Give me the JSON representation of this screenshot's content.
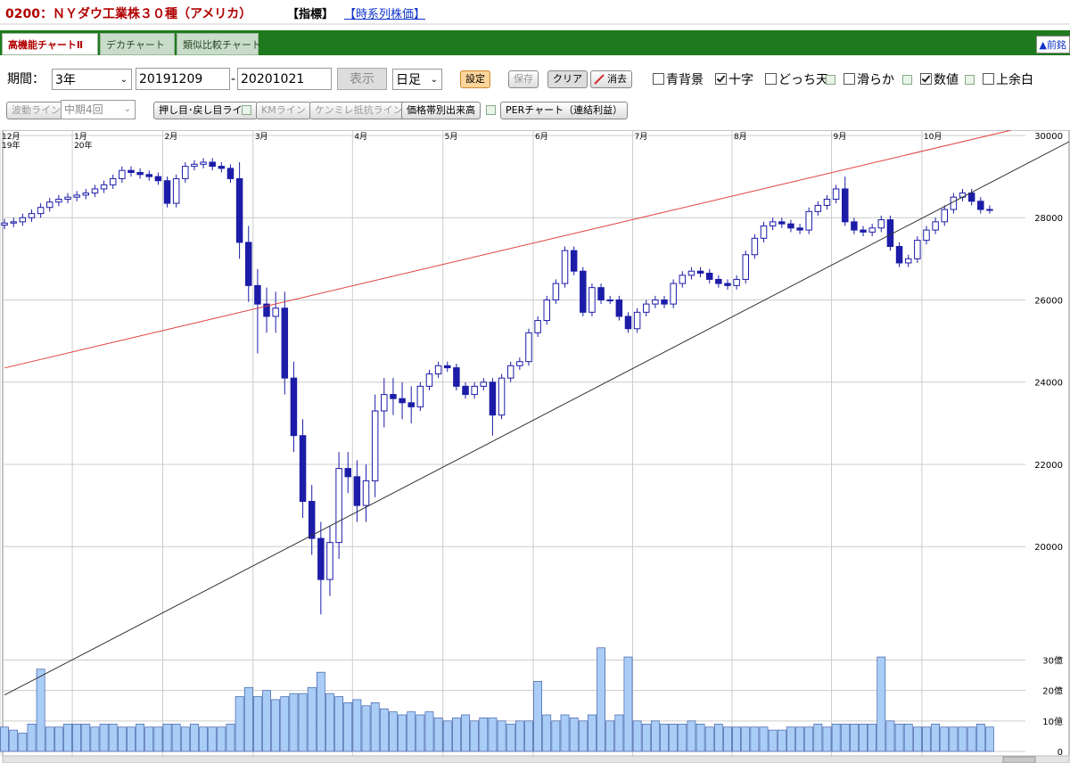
{
  "header": {
    "title": "0200：ＮＹダウ工業株３０種（アメリカ）",
    "indicator": "【指標】",
    "timeseries_link": "【時系列株価】"
  },
  "tabs": [
    "高機能チャートⅡ",
    "デカチャート",
    "類似比較チャート"
  ],
  "prev_brand": "▲前銘",
  "controls": {
    "period_label": "期間：",
    "period": "3年",
    "start": "20191209",
    "separator": "-",
    "end": "20201021",
    "show_button": "表示",
    "interval": "日足",
    "settings": "設定",
    "save": "保存",
    "clear": "クリア",
    "erase": "消去",
    "checkboxes": [
      {
        "label": "青背景",
        "checked": false
      },
      {
        "label": "十字",
        "checked": true
      },
      {
        "label": "どっち天",
        "checked": false
      },
      {
        "label": "滑らか",
        "checked": false
      },
      {
        "label": "数値",
        "checked": true
      },
      {
        "label": "上余白",
        "checked": false
      }
    ]
  },
  "tools": {
    "wave_line": "波動ライン",
    "wave_period": "中期4回",
    "buttons": [
      "押し目･戻し目ライン",
      "KMライン",
      "ケンミレ抵抗ライン",
      "価格帯別出来高",
      "PERチャート（連結利益）"
    ]
  },
  "chart_data": {
    "type": "candlestick",
    "grid": true,
    "color": "#1c1ca8",
    "up_color": "#ffffff",
    "categories": [
      "12月",
      null,
      null,
      null,
      null,
      null,
      null,
      null,
      "1月",
      null,
      null,
      null,
      null,
      null,
      null,
      null,
      null,
      null,
      "2月",
      null,
      null,
      null,
      null,
      null,
      null,
      null,
      null,
      null,
      "3月",
      null,
      null,
      null,
      null,
      null,
      null,
      null,
      null,
      null,
      null,
      "4月",
      null,
      null,
      null,
      null,
      null,
      null,
      null,
      null,
      null,
      "5月",
      null,
      null,
      null,
      null,
      null,
      null,
      null,
      null,
      null,
      "6月",
      null,
      null,
      null,
      null,
      null,
      null,
      null,
      null,
      null,
      null,
      "7月",
      null,
      null,
      null,
      null,
      null,
      null,
      null,
      null,
      null,
      null,
      "8月",
      null,
      null,
      null,
      null,
      null,
      null,
      null,
      null,
      null,
      null,
      "9月",
      null,
      null,
      null,
      null,
      null,
      null,
      null,
      null,
      null,
      "10月",
      null,
      null,
      null,
      null,
      null,
      null,
      null
    ],
    "year_labels": [
      "19年",
      null,
      null,
      null,
      null,
      null,
      null,
      null,
      "20年",
      null,
      null,
      null,
      null,
      null,
      null,
      null,
      null,
      null,
      null,
      null,
      null,
      null,
      null,
      null,
      null,
      null,
      null,
      null,
      null,
      null,
      null,
      null,
      null,
      null,
      null,
      null,
      null,
      null,
      null,
      null,
      null,
      null,
      null,
      null,
      null,
      null,
      null,
      null,
      null,
      null,
      null,
      null,
      null,
      null,
      null,
      null,
      null,
      null,
      null,
      null,
      null,
      null,
      null,
      null,
      null,
      null,
      null,
      null,
      null,
      null,
      null,
      null,
      null,
      null,
      null,
      null,
      null,
      null,
      null,
      null,
      null,
      null,
      null,
      null,
      null,
      null,
      null,
      null,
      null,
      null,
      null,
      null,
      null,
      null,
      null,
      null,
      null,
      null,
      null,
      null,
      null,
      null,
      null,
      null,
      null,
      null,
      null,
      null,
      null,
      null
    ],
    "open": [
      27820,
      27870,
      27900,
      28000,
      28100,
      28250,
      28380,
      28450,
      28500,
      28550,
      28600,
      28700,
      28800,
      28950,
      29150,
      29100,
      29050,
      29000,
      28900,
      28350,
      28950,
      29250,
      29300,
      29350,
      29250,
      29200,
      28950,
      27400,
      26350,
      25900,
      25600,
      25800,
      24100,
      22700,
      21100,
      20200,
      19200,
      20100,
      21900,
      21700,
      21000,
      21600,
      23300,
      23700,
      23600,
      23500,
      23400,
      23900,
      24200,
      24400,
      24350,
      23900,
      23700,
      23900,
      24000,
      23200,
      24100,
      24400,
      24500,
      25200,
      25500,
      26000,
      26400,
      27200,
      26700,
      25700,
      26300,
      26000,
      26000,
      25600,
      25300,
      25700,
      25900,
      26000,
      25900,
      26400,
      26600,
      26700,
      26650,
      26500,
      26400,
      26350,
      26500,
      27100,
      27500,
      27800,
      27900,
      27850,
      27750,
      27700,
      28150,
      28300,
      28450,
      28700,
      27900,
      27700,
      27650,
      27750,
      27950,
      27300,
      26900,
      27000,
      27450,
      27700,
      27900,
      28200,
      28500,
      28600,
      28400,
      28200
    ],
    "high": [
      27970,
      28000,
      28100,
      28200,
      28350,
      28480,
      28550,
      28600,
      28650,
      28700,
      28800,
      28900,
      29050,
      29250,
      29250,
      29200,
      29150,
      29100,
      29000,
      29050,
      29350,
      29400,
      29450,
      29450,
      29350,
      29300,
      29350,
      27800,
      26750,
      26300,
      26200,
      26200,
      24500,
      23100,
      21500,
      20600,
      20500,
      22300,
      22300,
      22100,
      22000,
      23700,
      24100,
      24100,
      24000,
      23900,
      24000,
      24300,
      24500,
      24500,
      24450,
      24000,
      24000,
      24100,
      24100,
      24200,
      24500,
      24600,
      25300,
      25600,
      26100,
      26500,
      27300,
      27300,
      26800,
      26400,
      26400,
      26100,
      26100,
      25700,
      25800,
      26000,
      26100,
      26100,
      26500,
      26700,
      26800,
      26800,
      26750,
      26600,
      26500,
      26600,
      27200,
      27600,
      27900,
      28000,
      28000,
      27950,
      27850,
      28250,
      28400,
      28550,
      28800,
      29000,
      28000,
      27800,
      27850,
      28050,
      28050,
      27400,
      27100,
      27550,
      27800,
      28000,
      28300,
      28600,
      28700,
      28700,
      28500,
      28300
    ],
    "low": [
      27720,
      27770,
      27800,
      27900,
      28000,
      28150,
      28280,
      28350,
      28400,
      28450,
      28500,
      28600,
      28700,
      28850,
      29000,
      28950,
      28900,
      28800,
      28250,
      28250,
      28850,
      29150,
      29200,
      29150,
      29100,
      28850,
      27000,
      25950,
      24700,
      25200,
      25200,
      23700,
      22300,
      20700,
      19800,
      18350,
      18800,
      19700,
      21300,
      20600,
      20600,
      21200,
      22900,
      23200,
      23100,
      23000,
      23300,
      23800,
      24100,
      24250,
      23800,
      23600,
      23600,
      23800,
      22700,
      23100,
      24000,
      24300,
      24400,
      25100,
      25400,
      25900,
      26300,
      26600,
      25600,
      25600,
      25900,
      25900,
      25500,
      25200,
      25200,
      25600,
      25800,
      25800,
      25800,
      26300,
      26500,
      26550,
      26400,
      26300,
      26250,
      26250,
      26400,
      27000,
      27400,
      27700,
      27750,
      27650,
      27600,
      27600,
      28050,
      28200,
      28350,
      27800,
      27600,
      27550,
      27550,
      27650,
      27200,
      26800,
      26800,
      26900,
      27350,
      27600,
      27800,
      28100,
      28400,
      28300,
      28100,
      28100
    ],
    "close": [
      27870,
      27900,
      28000,
      28100,
      28250,
      28380,
      28450,
      28500,
      28550,
      28600,
      28700,
      28800,
      28950,
      29150,
      29100,
      29050,
      29000,
      28900,
      28350,
      28950,
      29250,
      29300,
      29350,
      29250,
      29200,
      28950,
      27400,
      26350,
      25900,
      25600,
      25800,
      24100,
      22700,
      21100,
      20200,
      19200,
      20100,
      21900,
      21700,
      21000,
      21600,
      23300,
      23700,
      23600,
      23500,
      23400,
      23900,
      24200,
      24400,
      24350,
      23900,
      23700,
      23900,
      24000,
      23200,
      24100,
      24400,
      24500,
      25200,
      25500,
      26000,
      26400,
      27200,
      26700,
      25700,
      26300,
      26000,
      26000,
      25600,
      25300,
      25700,
      25900,
      26000,
      25900,
      26400,
      26600,
      26700,
      26650,
      26500,
      26400,
      26350,
      26500,
      27100,
      27500,
      27800,
      27900,
      27850,
      27750,
      27700,
      28150,
      28300,
      28450,
      28700,
      27900,
      27700,
      27650,
      27750,
      27950,
      27300,
      26900,
      27000,
      27450,
      27700,
      27900,
      28200,
      28500,
      28600,
      28400,
      28200,
      28200
    ],
    "ylim": [
      17360,
      30130
    ],
    "yticks": [
      20000,
      22000,
      24000,
      26000,
      28000,
      30000
    ],
    "trendlines": [
      {
        "color": "#e04040",
        "x": [
          0,
          111.4
        ],
        "y": [
          24345,
          30130
        ]
      },
      {
        "color": "#333333",
        "x": [
          0,
          117.8
        ],
        "y": [
          16390,
          29850
        ]
      }
    ],
    "volume": {
      "color": "#a9cdf6",
      "edge_color": "#2c4da0",
      "ylim": [
        0,
        31.6
      ],
      "yticks": [
        0,
        {
          "value": 10,
          "label": "10億"
        },
        {
          "value": 20,
          "label": "20億"
        },
        {
          "value": 30,
          "label": "30億"
        }
      ],
      "values": [
        8,
        7,
        6,
        9,
        27,
        8,
        8,
        9,
        9,
        9,
        8,
        9,
        9,
        8,
        8,
        9,
        8,
        8,
        9,
        9,
        8,
        9,
        8,
        8,
        8,
        9,
        18,
        21,
        18,
        20,
        17,
        18,
        19,
        19,
        21,
        26,
        19,
        18,
        16,
        17,
        15,
        16,
        14,
        13,
        12,
        13,
        12,
        13,
        11,
        10,
        11,
        12,
        10,
        11,
        11,
        10,
        9,
        10,
        10,
        23,
        12,
        10,
        12,
        11,
        10,
        12,
        34,
        10,
        12,
        31,
        10,
        9,
        10,
        9,
        9,
        9,
        10,
        9,
        8,
        9,
        8,
        8,
        8,
        8,
        8,
        7,
        7,
        8,
        8,
        8,
        9,
        8,
        9,
        9,
        9,
        9,
        9,
        31,
        10,
        9,
        9,
        8,
        8,
        9,
        8,
        8,
        8,
        8,
        9,
        8
      ]
    }
  }
}
